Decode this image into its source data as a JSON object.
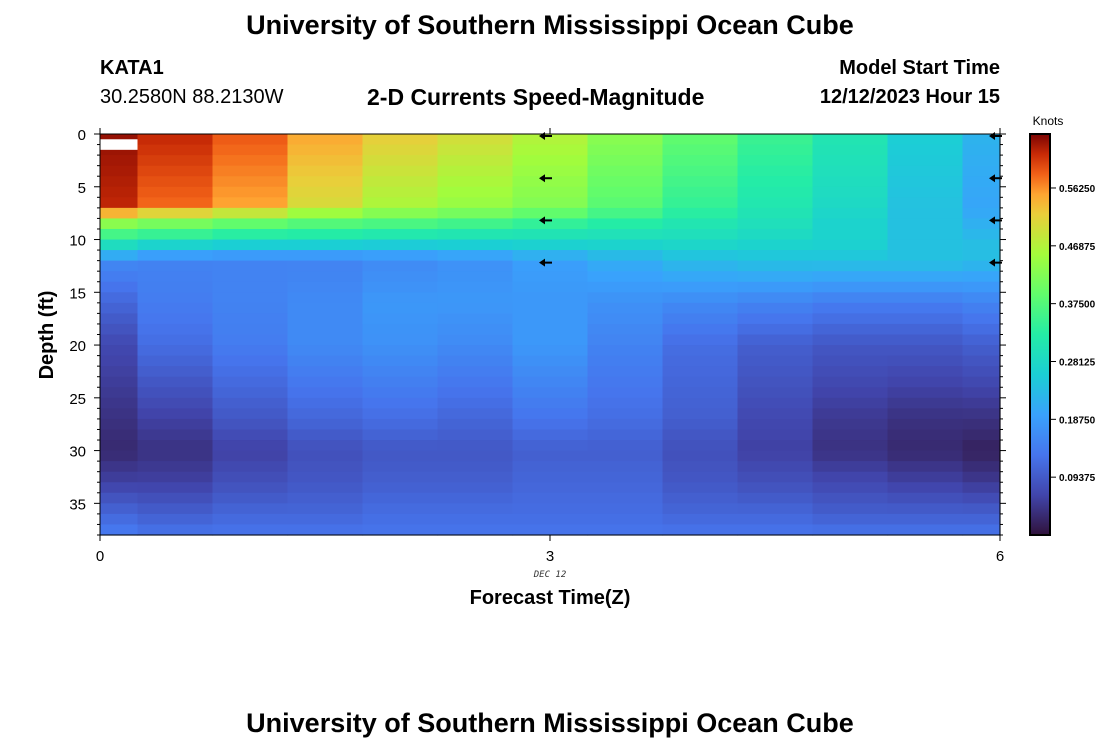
{
  "header": {
    "title": "University of Southern Mississippi Ocean Cube",
    "station": "KATA1",
    "coords": "30.2580N  88.2130W",
    "subtitle": "2-D Currents Speed-Magnitude",
    "model_label": "Model Start Time",
    "model_value": "12/12/2023 Hour 15"
  },
  "footer": {
    "title": "University of Southern Mississippi Ocean Cube"
  },
  "chart_data": {
    "type": "heatmap",
    "title": "2-D Currents Speed-Magnitude",
    "xlabel": "Forecast Time(Z)",
    "ylabel": "Depth (ft)",
    "date_label": "DEC 12",
    "x_ticks": [
      "0",
      "3",
      "6"
    ],
    "y_ticks": [
      "0",
      "5",
      "10",
      "15",
      "20",
      "25",
      "30",
      "35"
    ],
    "xlim": [
      0,
      6
    ],
    "ylim": [
      38,
      0
    ],
    "colorbar": {
      "label": "Knots",
      "ticks": [
        "0.56250",
        "0.46875",
        "0.37500",
        "0.28125",
        "0.18750",
        "0.09375"
      ],
      "tick_values": [
        0.5625,
        0.46875,
        0.375,
        0.28125,
        0.1875,
        0.09375
      ],
      "range": [
        0,
        0.65
      ]
    },
    "time_columns": [
      0,
      0.5,
      1,
      1.5,
      2,
      2.5,
      3,
      3.5,
      4,
      4.5,
      5,
      5.5,
      6
    ],
    "depth_knots": [
      0,
      7,
      8,
      9,
      10,
      11,
      12,
      16,
      20,
      27,
      30,
      33,
      36,
      38
    ],
    "speed_knots": [
      [
        0.64,
        0.62,
        0.46,
        0.4,
        0.32,
        0.26,
        0.16,
        0.11,
        0.07,
        0.04,
        0.03,
        0.06,
        0.11,
        0.14
      ],
      [
        0.62,
        0.58,
        0.44,
        0.38,
        0.31,
        0.23,
        0.15,
        0.14,
        0.12,
        0.06,
        0.04,
        0.06,
        0.1,
        0.13
      ],
      [
        0.59,
        0.55,
        0.42,
        0.36,
        0.3,
        0.22,
        0.15,
        0.15,
        0.14,
        0.09,
        0.06,
        0.08,
        0.11,
        0.13
      ],
      [
        0.55,
        0.5,
        0.4,
        0.35,
        0.3,
        0.22,
        0.15,
        0.16,
        0.16,
        0.11,
        0.08,
        0.09,
        0.11,
        0.13
      ],
      [
        0.52,
        0.46,
        0.39,
        0.34,
        0.29,
        0.22,
        0.16,
        0.18,
        0.17,
        0.12,
        0.09,
        0.1,
        0.12,
        0.13
      ],
      [
        0.5,
        0.44,
        0.38,
        0.33,
        0.29,
        0.23,
        0.17,
        0.18,
        0.16,
        0.11,
        0.09,
        0.1,
        0.12,
        0.13
      ],
      [
        0.47,
        0.42,
        0.36,
        0.32,
        0.29,
        0.24,
        0.19,
        0.18,
        0.18,
        0.13,
        0.1,
        0.11,
        0.12,
        0.13
      ],
      [
        0.43,
        0.38,
        0.34,
        0.31,
        0.29,
        0.25,
        0.21,
        0.17,
        0.15,
        0.12,
        0.1,
        0.11,
        0.12,
        0.13
      ],
      [
        0.39,
        0.34,
        0.32,
        0.3,
        0.29,
        0.26,
        0.23,
        0.16,
        0.12,
        0.1,
        0.08,
        0.09,
        0.11,
        0.13
      ],
      [
        0.35,
        0.31,
        0.3,
        0.29,
        0.28,
        0.26,
        0.24,
        0.15,
        0.1,
        0.07,
        0.06,
        0.08,
        0.11,
        0.13
      ],
      [
        0.31,
        0.28,
        0.27,
        0.27,
        0.27,
        0.26,
        0.24,
        0.14,
        0.09,
        0.05,
        0.04,
        0.07,
        0.1,
        0.13
      ],
      [
        0.26,
        0.24,
        0.24,
        0.24,
        0.24,
        0.24,
        0.24,
        0.14,
        0.09,
        0.04,
        0.03,
        0.06,
        0.1,
        0.13
      ],
      [
        0.22,
        0.2,
        0.21,
        0.22,
        0.23,
        0.24,
        0.23,
        0.15,
        0.1,
        0.04,
        0.02,
        0.05,
        0.1,
        0.13
      ]
    ],
    "missing_cell": {
      "time_range": [
        0,
        0.25
      ],
      "depth_range": [
        0.5,
        1.5
      ]
    },
    "arrows": {
      "times": [
        3,
        6
      ],
      "depths": [
        0,
        4,
        8,
        12
      ],
      "direction": "west"
    }
  }
}
